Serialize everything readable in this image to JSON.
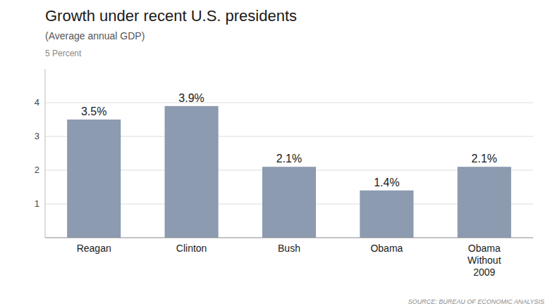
{
  "chart_data": {
    "type": "bar",
    "title": "Growth under recent U.S. presidents",
    "subtitle": "(Average annual GDP)",
    "ylabel": "5 Percent",
    "source": "SOURCE: BUREAU OF ECONOMIC ANALYSIS",
    "categories": [
      "Reagan",
      "Clinton",
      "Bush",
      "Obama",
      "Obama\nWithout\n2009"
    ],
    "values": [
      3.5,
      3.9,
      2.1,
      1.4,
      2.1
    ],
    "value_labels": [
      "3.5%",
      "3.9%",
      "2.1%",
      "1.4%",
      "2.1%"
    ],
    "data_labels": true,
    "color": "#8c9baf",
    "ylim": [
      0,
      5
    ],
    "yticks": [
      1,
      2,
      3,
      4
    ],
    "grid": true
  }
}
